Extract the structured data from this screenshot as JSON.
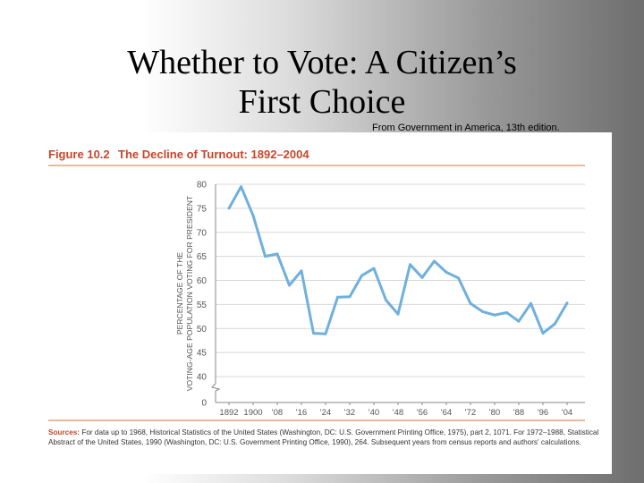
{
  "slide": {
    "title_line1": "Whether to Vote: A Citizen’s",
    "title_line2": "First Choice",
    "source_note": "From Government in America, 13th edition."
  },
  "figure": {
    "number": "Figure 10.2",
    "caption": "The Decline of Turnout: 1892–2004",
    "sources_label": "Sources:",
    "sources_text": "For data up to 1968, Historical Statistics of the United States (Washington, DC: U.S. Government Printing Office, 1975), part 2, 1071. For 1972–1988, Statistical Abstract of the United States, 1990 (Washington, DC: U.S. Government Printing Office, 1990), 264. Subsequent years from census reports and authors' calculations."
  },
  "colors": {
    "accent": "#c8462a",
    "rule": "#e8a07a",
    "line": "#6fb0dc",
    "grid": "#d8d8d8",
    "axis_text": "#555555"
  },
  "chart_data": {
    "type": "line",
    "ylabel": "PERCENTAGE OF THE VOTING-AGE POPULATION VOTING FOR PRESIDENT",
    "xlabel": "",
    "ylim": [
      40,
      80
    ],
    "y_ticks": [
      0,
      40,
      45,
      50,
      55,
      60,
      65,
      70,
      75,
      80
    ],
    "y_axis_break": true,
    "grid": true,
    "x_tick_labels": [
      "1892",
      "1900",
      "'08",
      "'16",
      "'24",
      "'32",
      "'40",
      "'48",
      "'56",
      "'64",
      "'72",
      "'80",
      "'88",
      "'96",
      "'04"
    ],
    "x": [
      1892,
      1896,
      1900,
      1904,
      1908,
      1912,
      1916,
      1920,
      1924,
      1928,
      1932,
      1936,
      1940,
      1944,
      1948,
      1952,
      1956,
      1960,
      1964,
      1968,
      1972,
      1976,
      1980,
      1984,
      1988,
      1992,
      1996,
      2000,
      2004
    ],
    "series": [
      {
        "values": [
          75,
          79.5,
          73.5,
          65,
          65.5,
          59,
          62,
          49,
          48.9,
          56.5,
          56.6,
          61,
          62.5,
          55.9,
          53,
          63.3,
          60.6,
          64,
          61.7,
          60.5,
          55.2,
          53.5,
          52.8,
          53.3,
          51.5,
          55.2,
          49,
          51,
          55.3
        ]
      }
    ]
  }
}
